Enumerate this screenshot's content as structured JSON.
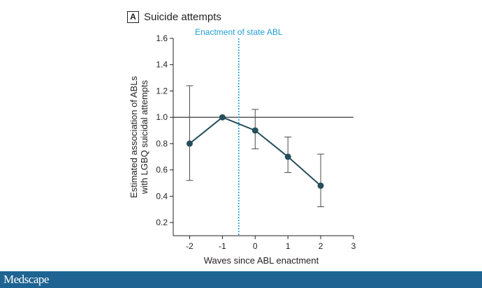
{
  "panel": {
    "letter": "A",
    "title": "Suicide attempts"
  },
  "chart_data": {
    "type": "line",
    "annotation": "Enactment of state ABL",
    "xlabel": "Waves since ABL enactment",
    "ylabel_lines": [
      "Estimated association of ABLs",
      "with LGBQ suicidal attempts"
    ],
    "xlim": [
      -2.5,
      3
    ],
    "ylim": [
      0.1,
      1.6
    ],
    "x_ticks": [
      -2,
      -1,
      0,
      1,
      2,
      3
    ],
    "x_tick_labels": [
      "-2",
      "-1",
      "0",
      "1",
      "2",
      "3"
    ],
    "y_ticks": [
      0.2,
      0.4,
      0.6,
      0.8,
      1.0,
      1.2,
      1.4,
      1.6
    ],
    "y_tick_labels": [
      "0.2",
      "0.4",
      "0.6",
      "0.8",
      "1.0",
      "1.2",
      "1.4",
      "1.6"
    ],
    "reference_line_y": 1.0,
    "enactment_x": -0.5,
    "x": [
      -2,
      -1,
      0,
      1,
      2
    ],
    "y": [
      0.8,
      1.0,
      0.9,
      0.7,
      0.48
    ],
    "ci_lower": [
      0.52,
      null,
      0.76,
      0.58,
      0.32
    ],
    "ci_upper": [
      1.24,
      null,
      1.06,
      0.85,
      0.72
    ],
    "colors": {
      "series": "#264e5c",
      "annotation": "#1f9ed6",
      "axis": "#231f20",
      "errorbar": "#4a4a4a"
    }
  },
  "footer": {
    "brand": "Medscape"
  }
}
